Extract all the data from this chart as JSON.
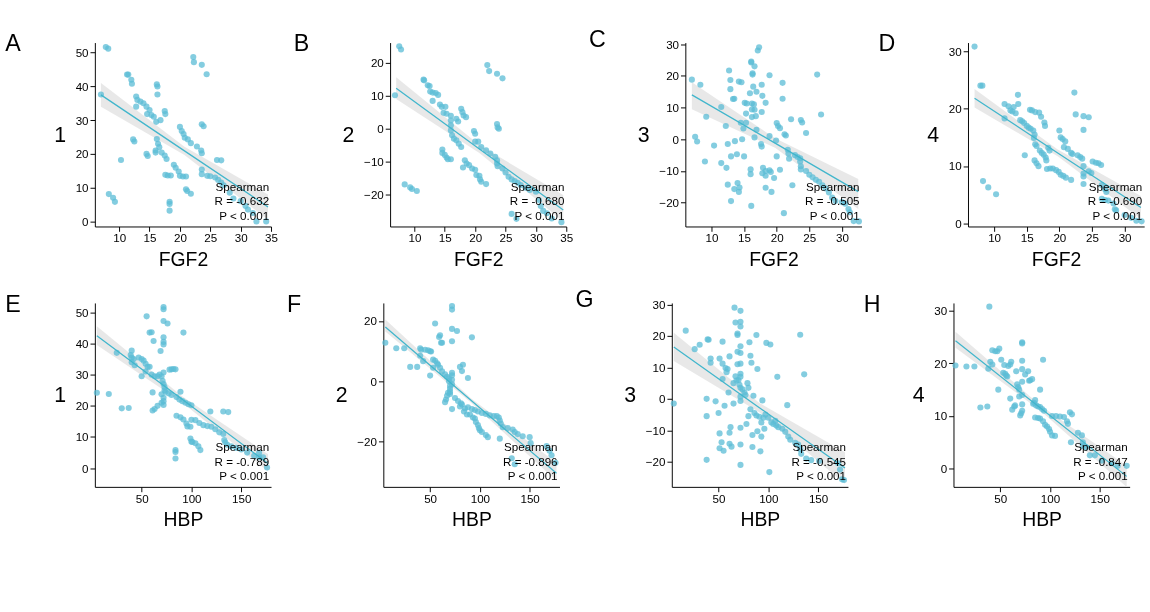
{
  "chart_data": [
    {
      "type": "scatter",
      "title": "A",
      "xlabel": "FGF2",
      "ylabel": "1",
      "marker": "circle",
      "xlim": [
        6,
        35
      ],
      "xticks": [
        10,
        15,
        20,
        25,
        30,
        35
      ],
      "ylim": [
        -1.5,
        53
      ],
      "yticks": [
        0,
        10,
        20,
        30,
        40,
        50
      ],
      "annotations": [
        "Spearman",
        "R = -0.632",
        "P < 0.001"
      ],
      "series": [
        {
          "type": "scatter",
          "color": "#5bbcd6",
          "x": [
            7.8,
            8.2,
            7,
            8.3,
            9,
            9.3,
            10.3,
            11.3,
            11.5,
            12,
            12.1,
            12.3,
            12.5,
            12.8,
            12.8,
            13,
            13.5,
            14,
            14.5,
            15,
            14.6,
            15.3,
            15.7,
            14.5,
            14.7,
            16.2,
            16.3,
            16.3,
            16.1,
            16.8,
            16.2,
            16.4,
            16.6,
            16,
            16,
            17,
            17.5,
            17.8,
            17.5,
            17.6,
            17.6,
            18,
            18.5,
            18.3,
            18.3,
            18.3,
            19,
            19.3,
            19.8,
            20,
            20,
            20.3,
            20.6,
            20.8,
            20.5,
            21,
            21,
            21.2,
            21.8,
            21.3,
            21.8,
            22.2,
            22.3,
            23.6,
            24.4,
            22.8,
            23.5,
            23.6,
            23.6,
            23.9,
            23.6,
            23.6,
            24.5,
            25,
            25.8,
            26.3,
            26.8,
            27.2,
            26.1,
            26.8,
            28.2,
            28.8,
            30,
            30.8,
            31.2,
            32,
            32.6,
            34.2
          ],
          "values": [
            51.7,
            51.2,
            37.6,
            8.1,
            7,
            5.8,
            18.2,
            43.5,
            43.5,
            42,
            40.8,
            24.3,
            23.7,
            37,
            34,
            36,
            35.5,
            35,
            34,
            33,
            31.8,
            31.5,
            31,
            20,
            19.4,
            40.6,
            40,
            37.6,
            29.5,
            30,
            24.4,
            23,
            22,
            21,
            20.4,
            20.4,
            19.5,
            18.5,
            32.7,
            31.8,
            13.8,
            13.6,
            13.6,
            5.8,
            5.2,
            3.2,
            16.8,
            15.9,
            14.8,
            13.5,
            28,
            26.8,
            25.9,
            24.8,
            13.3,
            13.3,
            9.5,
            9,
            8.2,
            24.3,
            23.2,
            48.7,
            47.2,
            46.4,
            43.6,
            22.2,
            21,
            20.2,
            28.8,
            28.2,
            15.4,
            14,
            13.5,
            13.4,
            13,
            12.3,
            11.5,
            10.7,
            18.2,
            18.1,
            8.5,
            6.8,
            6,
            4.6,
            3.5,
            2.5,
            0,
            0
          ]
        },
        {
          "type": "line",
          "marker": "none",
          "color": "#41b6cc",
          "x": [
            7,
            20.75,
            34.5
          ],
          "values": [
            37.5,
            20.9,
            4.3
          ],
          "lower": [
            34,
            19.7,
            0.5
          ],
          "upper": [
            41,
            22.1,
            8
          ]
        }
      ]
    },
    {
      "type": "scatter",
      "title": "B",
      "xlabel": "FGF2",
      "ylabel": "2",
      "marker": "circle",
      "xlim": [
        6,
        35
      ],
      "xticks": [
        10,
        15,
        20,
        25,
        30,
        35
      ],
      "ylim": [
        -29.5,
        26
      ],
      "yticks": [
        -20,
        -10,
        0,
        10,
        20
      ],
      "annotations": [
        "Spearman",
        "R = -0.680",
        "P < 0.001"
      ],
      "series": [
        {
          "type": "scatter",
          "color": "#5bbcd6",
          "x": [
            7.5,
            7.8,
            6.8,
            8.4,
            9.3,
            9.6,
            10.4,
            11.5,
            11.6,
            12.2,
            12.5,
            12.6,
            13,
            13.5,
            13.9,
            13,
            14.2,
            14.5,
            15.1,
            14.8,
            15.3,
            14.6,
            14.6,
            15,
            15.3,
            15.5,
            16,
            16,
            16,
            16,
            16,
            16.2,
            16.5,
            16.9,
            17.3,
            17.7,
            16.9,
            17.2,
            17.7,
            17.9,
            18.1,
            18.5,
            18.3,
            18.6,
            18,
            19,
            19.5,
            20,
            20.2,
            20.7,
            20.8,
            21,
            21.8,
            19.8,
            20,
            20,
            20.5,
            21,
            21.8,
            22.5,
            22,
            22.3,
            23.6,
            24.5,
            23.6,
            23.7,
            23.9,
            23.3,
            23.6,
            23.6,
            23.7,
            24.5,
            25,
            25.5,
            26,
            26.5,
            27,
            27.5,
            28.3,
            29,
            30,
            30.5,
            30.8,
            31.2,
            31.8,
            26,
            26.8,
            32.6,
            34.2
          ],
          "values": [
            24.9,
            23.9,
            10.1,
            -16.8,
            -17.7,
            -18.2,
            -18.8,
            14.8,
            14.6,
            13.1,
            12.9,
            11.2,
            10.9,
            10.8,
            10.2,
            8.4,
            7.3,
            6.6,
            6.6,
            4.8,
            4.5,
            -6.3,
            -7.3,
            -7.9,
            -8.7,
            -9.2,
            -9.2,
            3.9,
            2.5,
            1,
            -0.5,
            -2,
            -3,
            -3.5,
            -4.5,
            -5.5,
            3,
            2.2,
            6,
            5,
            4,
            3.5,
            -9.5,
            -10.5,
            -11.7,
            -11,
            -12,
            -12.4,
            -14,
            -14.2,
            -15.3,
            -16,
            -16.7,
            -0.7,
            -1.5,
            -3.9,
            -3.9,
            -5.5,
            -6.5,
            -7.5,
            19.2,
            17.4,
            16.6,
            15.2,
            1.4,
            0.4,
            0,
            -8.5,
            -9.5,
            -10.5,
            -11.3,
            -12,
            -13.2,
            -14.5,
            -15.3,
            -15.8,
            -16.3,
            -17,
            -17.8,
            -18.5,
            -19,
            -21.5,
            -23.3,
            -24.8,
            -25.5,
            -25.7,
            -27.2,
            -27.1,
            -28.2
          ]
        },
        {
          "type": "line",
          "marker": "none",
          "color": "#41b6cc",
          "x": [
            7,
            20.75,
            34.5
          ],
          "values": [
            12.2,
            -6.2,
            -24.5
          ],
          "lower": [
            9,
            -7.4,
            -28
          ],
          "upper": [
            15.5,
            -5,
            -20
          ]
        }
      ]
    },
    {
      "type": "scatter",
      "title": "C",
      "xlabel": "FGF2",
      "ylabel": "3",
      "marker": "circle",
      "xlim": [
        6,
        33
      ],
      "xticks": [
        10,
        15,
        20,
        25,
        30
      ],
      "ylim": [
        -27.5,
        30.5
      ],
      "yticks": [
        -20,
        -10,
        0,
        10,
        20,
        30
      ],
      "annotations": [
        "Spearman",
        "R = -0.505",
        "P < 0.001"
      ],
      "series": [
        {
          "type": "scatter",
          "color": "#5bbcd6",
          "x": [
            7,
            8.3,
            7.5,
            7.8,
            9.2,
            9,
            10.4,
            11.5,
            11.5,
            12.2,
            12.3,
            12.5,
            12.5,
            12.7,
            12.9,
            12.9,
            13.3,
            13.5,
            13,
            13.6,
            13.9,
            13.5,
            14,
            14.2,
            14.3,
            13,
            14.2,
            14.6,
            14.5,
            15.3,
            14.9,
            14.7,
            15,
            15.1,
            15.4,
            15.3,
            15.9,
            16.1,
            16.1,
            16.3,
            16.3,
            16.4,
            16.6,
            16.2,
            16.5,
            16.2,
            16.6,
            16.2,
            16.8,
            16.9,
            16.9,
            16.6,
            16,
            16,
            16.1,
            17.1,
            17.3,
            17.7,
            17.8,
            17.7,
            18.3,
            17.6,
            17.7,
            17.9,
            17.8,
            18.3,
            18.3,
            18.9,
            19.1,
            18.3,
            19.2,
            19.6,
            18.9,
            18.9,
            19.9,
            20,
            20.2,
            20.5,
            20,
            20.5,
            20.9,
            20.9,
            21.2,
            21.4,
            21.7,
            21.8,
            21.9,
            22.2,
            22.4,
            21.1,
            22.8,
            23.2,
            23.6,
            23.7,
            23.9,
            23.6,
            23.7,
            23.7,
            24.5,
            24.5,
            25,
            25.5,
            26,
            26.5,
            27,
            27.5,
            28,
            28.5,
            29,
            30,
            30.5,
            31,
            31.2,
            31.8,
            32.6,
            26.2,
            26.8
          ],
          "values": [
            18.8,
            17.2,
            0.8,
            -0.7,
            7.1,
            -7,
            -2,
            10.2,
            -7.5,
            4.2,
            -9,
            -1.5,
            -14.3,
            21.7,
            18.7,
            15.8,
            12.7,
            12.8,
            -5.4,
            -0.6,
            -4.7,
            -15.7,
            -13.8,
            -16.6,
            -15.2,
            -19.5,
            18.2,
            18,
            5.2,
            5.2,
            3.4,
            0,
            -5.4,
            11.5,
            11.3,
            8.1,
            14.5,
            24.5,
            24.2,
            20.8,
            20.4,
            16.6,
            23,
            11.3,
            11,
            9.4,
            9.3,
            7,
            7.3,
            15,
            3,
            0.6,
            -9.5,
            -11,
            -21,
            28,
            29,
            17.2,
            13.7,
            8.6,
            11.5,
            -1.5,
            -2.3,
            -9,
            -10.7,
            -10,
            -11.5,
            -9.8,
            -10.3,
            -15.3,
            -16.6,
            -12.2,
            20.2,
            1,
            -0.4,
            5.1,
            4.2,
            3.5,
            -5.4,
            -9.6,
            17.8,
            12.8,
            1.6,
            1.2,
            -3.3,
            -4.5,
            -6.1,
            6.3,
            -14.5,
            -23.3,
            -5,
            -5.6,
            -6,
            6.1,
            5.3,
            -7,
            -8.5,
            -9.5,
            2,
            -10,
            -11.2,
            -12,
            -12.8,
            -13.4,
            -14.5,
            -15.5,
            -16.8,
            -18.4,
            -19.5,
            -19.8,
            -20.3,
            -22,
            -23,
            -25.8,
            -25.9,
            20.4,
            7.8
          ]
        },
        {
          "type": "line",
          "marker": "none",
          "color": "#41b6cc",
          "x": [
            7,
            19.75,
            32.5
          ],
          "values": [
            14,
            -1.2,
            -16.5
          ],
          "lower": [
            9.5,
            -2.7,
            -22
          ],
          "upper": [
            18,
            0.3,
            -12.5
          ]
        }
      ]
    },
    {
      "type": "scatter",
      "title": "D",
      "xlabel": "FGF2",
      "ylabel": "4",
      "marker": "circle",
      "xlim": [
        6,
        33
      ],
      "xticks": [
        10,
        15,
        20,
        25,
        30
      ],
      "ylim": [
        -0.5,
        31.5
      ],
      "yticks": [
        0,
        10,
        20,
        30
      ],
      "annotations": [
        "Spearman",
        "R = -0.690",
        "P < 0.001"
      ],
      "series": [
        {
          "type": "scatter",
          "color": "#5bbcd6",
          "x": [
            7,
            7.9,
            8.2,
            8.3,
            9.1,
            10.3,
            11.6,
            11.6,
            12.2,
            12.5,
            12.8,
            13,
            13.3,
            13.65,
            13.7,
            14,
            14.3,
            14.6,
            15,
            15.3,
            15.6,
            14.7,
            15.5,
            15.8,
            16.3,
            16.9,
            17.2,
            16,
            16.2,
            16.1,
            16.3,
            16.5,
            16.2,
            16.5,
            16.8,
            17,
            17.3,
            17.6,
            17.9,
            17.7,
            17.8,
            18,
            18.1,
            18.6,
            18.3,
            18.5,
            19,
            19.5,
            19.9,
            20.2,
            20.6,
            21,
            21.8,
            20,
            20.2,
            20.5,
            20.9,
            20.7,
            21.3,
            21.8,
            22,
            22.3,
            22.5,
            22.8,
            23.2,
            23.5,
            23.7,
            23.7,
            24.5,
            23.7,
            23.7,
            23.7,
            23.7,
            24.5,
            24.9,
            25.1,
            25.6,
            26,
            26.4,
            26.5,
            27,
            27.2,
            26.5,
            27,
            27.5,
            28.3,
            28.5,
            28.7,
            30,
            31,
            31.8,
            32.6
          ],
          "values": [
            30.8,
            24,
            24,
            7.4,
            6.3,
            5.1,
            20.8,
            18.3,
            20.4,
            19.7,
            19.5,
            20.3,
            19.2,
            22.4,
            20.8,
            18,
            17.8,
            17.5,
            17,
            16.7,
            16.5,
            11.9,
            19.8,
            19.7,
            19.4,
            19.3,
            18.6,
            16.2,
            15.5,
            14.9,
            13.8,
            13.5,
            11,
            10.5,
            10,
            12.7,
            12.3,
            12,
            11.5,
            17.6,
            17,
            11,
            9.5,
            9.6,
            13.2,
            12.7,
            9.6,
            9.3,
            9,
            8.5,
            8.3,
            8,
            7.6,
            16.2,
            15,
            14.7,
            14.3,
            13.3,
            13,
            12.3,
            12.1,
            22.8,
            19,
            11.9,
            11.6,
            11.3,
            18.7,
            16.3,
            18.5,
            10,
            8.7,
            8.2,
            6.9,
            9.1,
            8.8,
            10.8,
            10.6,
            10.5,
            10.2,
            6.7,
            6,
            5.5,
            4.3,
            4.1,
            4,
            3.5,
            2.5,
            2.3,
            1.5,
            1,
            0.5,
            0.4
          ]
        },
        {
          "type": "line",
          "marker": "none",
          "color": "#41b6cc",
          "x": [
            7,
            19.75,
            32.5
          ],
          "values": [
            21.8,
            12.3,
            2.8
          ],
          "lower": [
            20.2,
            11.7,
            0.8
          ],
          "upper": [
            23.4,
            12.9,
            4.8
          ]
        }
      ]
    },
    {
      "type": "scatter",
      "title": "E",
      "xlabel": "HBP",
      "ylabel": "1",
      "marker": "circle",
      "xlim": [
        3,
        180
      ],
      "xticks": [
        50,
        100,
        150
      ],
      "ylim": [
        -6,
        53
      ],
      "yticks": [
        0,
        10,
        20,
        30,
        40,
        50
      ],
      "annotations": [
        "Spearman",
        "R = -0.789",
        "P < 0.001"
      ],
      "series": [
        {
          "type": "scatter",
          "color": "#5bbcd6",
          "x": [
            5,
            17,
            30,
            37,
            25,
            39,
            40,
            40,
            42,
            40,
            43,
            47,
            50,
            52,
            54,
            56,
            58,
            54,
            50,
            60,
            63,
            66,
            68,
            70,
            72,
            71,
            72,
            73,
            73,
            74,
            77,
            80,
            70,
            72,
            72,
            72,
            70,
            66,
            63,
            61,
            61,
            55,
            58,
            60,
            62,
            69,
            72,
            72,
            72,
            76,
            72,
            72,
            72,
            92,
            78,
            80,
            82,
            84,
            89,
            85,
            88,
            91,
            94,
            97,
            100,
            85,
            89,
            92,
            95,
            96,
            99,
            100,
            104,
            108,
            112,
            116,
            120,
            124,
            128,
            132,
            133,
            134,
            136,
            140,
            145,
            150,
            156,
            163,
            168,
            172,
            176,
            168,
            119,
            132,
            137,
            99,
            100,
            101,
            104,
            107,
            109,
            84,
            84,
            84
          ],
          "values": [
            24.2,
            23.8,
            19.2,
            19.3,
            37,
            36.3,
            37.7,
            35.5,
            35,
            34,
            33,
            35.5,
            35,
            34.5,
            33.5,
            32.5,
            32.5,
            31,
            29.5,
            30,
            29.5,
            29.5,
            30,
            29.5,
            30.7,
            28,
            27,
            26,
            25,
            24.5,
            24,
            23.5,
            23.7,
            22.6,
            21.5,
            20.3,
            21,
            20,
            19,
            18.5,
            24.3,
            48.7,
            43.5,
            43.6,
            40.8,
            37.6,
            51.7,
            51,
            47.2,
            46.4,
            42,
            40.5,
            39.7,
            43.5,
            31.6,
            31.7,
            31.8,
            31.7,
            24.5,
            22.8,
            22,
            21.5,
            21,
            20.5,
            20.2,
            16.8,
            16.3,
            15.6,
            14.3,
            13.4,
            13.3,
            15.5,
            15.4,
            14.5,
            13.8,
            13.5,
            13.3,
            12.5,
            11.5,
            11,
            9,
            8.3,
            7.5,
            7,
            6.5,
            6,
            5,
            4,
            3.5,
            3.5,
            0.2,
            4.9,
            18.2,
            18.2,
            18,
            9.5,
            8.5,
            8.4,
            8,
            7,
            5.8,
            5.8,
            5.2,
            3.1
          ]
        },
        {
          "type": "line",
          "marker": "none",
          "color": "#41b6cc",
          "x": [
            5,
            91,
            177
          ],
          "values": [
            42.5,
            22,
            1.5
          ],
          "lower": [
            39.5,
            21,
            -1
          ],
          "upper": [
            45.5,
            23,
            4.5
          ]
        }
      ]
    },
    {
      "type": "scatter",
      "title": "F",
      "xlabel": "HBP",
      "ylabel": "2",
      "marker": "circle",
      "xlim": [
        3,
        180
      ],
      "xticks": [
        50,
        100,
        150
      ],
      "ylim": [
        -35,
        26
      ],
      "yticks": [
        -20,
        0,
        20
      ],
      "annotations": [
        "Spearman",
        "R = -0.896",
        "P < 0.001"
      ],
      "series": [
        {
          "type": "scatter",
          "color": "#5bbcd6",
          "x": [
            5,
            16,
            24,
            30,
            37,
            40,
            41,
            45,
            48,
            50,
            51,
            40,
            43,
            50,
            53,
            55,
            57,
            58,
            60,
            53,
            55,
            59,
            60,
            61,
            62,
            62,
            65,
            67,
            69,
            69,
            70,
            70,
            70,
            70,
            72,
            72,
            72,
            72,
            68,
            67,
            66,
            65,
            72,
            72,
            72,
            77,
            72,
            92,
            83,
            80,
            82,
            88,
            75,
            78,
            80,
            81,
            82,
            72,
            85,
            88,
            92,
            95,
            98,
            102,
            106,
            110,
            114,
            117,
            119,
            120,
            121,
            123,
            128,
            133,
            135,
            138,
            143,
            150,
            151,
            84,
            87,
            90,
            93,
            95,
            96,
            98,
            99,
            100,
            102,
            106,
            108,
            120,
            132,
            135,
            167,
            170,
            172,
            176
          ],
          "values": [
            12.8,
            11,
            11,
            4.8,
            4.8,
            11,
            10.5,
            10.5,
            10.3,
            10,
            9.9,
            8.5,
            6.7,
            1.9,
            7.2,
            6.8,
            6,
            5.5,
            4.5,
            4.5,
            19.2,
            14.7,
            15.3,
            12.8,
            12.8,
            3.3,
            2.3,
            1.5,
            1,
            0,
            -1.5,
            -2.5,
            -3.5,
            -4.2,
            -1,
            0.5,
            2,
            2.8,
            -3.8,
            -4.8,
            -6,
            -6.9,
            25,
            23.8,
            17.4,
            16.7,
            13.3,
            14.6,
            5.5,
            4.8,
            3.4,
            1.1,
            -5.5,
            -6.5,
            -8.3,
            -7.3,
            -7.7,
            -9.2,
            -9,
            -8.6,
            -9.2,
            -9.5,
            -10,
            -10.5,
            -10.8,
            -11.3,
            -11.5,
            -11.5,
            -12,
            -13,
            -14,
            -15.2,
            -15.5,
            -16,
            -16.8,
            -17.5,
            -18.2,
            -18.5,
            -20.5,
            -10,
            -11,
            -11,
            -12,
            -12.3,
            -13.5,
            -14.5,
            -15.5,
            -16.2,
            -16.8,
            -17.8,
            -18.5,
            -19,
            -25.5,
            -27.5,
            -21.5,
            -23,
            -24.5,
            -27
          ]
        },
        {
          "type": "line",
          "marker": "none",
          "color": "#41b6cc",
          "x": [
            5,
            91,
            177
          ],
          "values": [
            18,
            -6.3,
            -30.5
          ],
          "lower": [
            16.5,
            -7,
            -33
          ],
          "upper": [
            20.5,
            -5.6,
            -27
          ]
        }
      ]
    },
    {
      "type": "scatter",
      "title": "G",
      "xlabel": "HBP",
      "ylabel": "3",
      "marker": "circle",
      "xlim": [
        3,
        180
      ],
      "xticks": [
        50,
        100,
        150
      ],
      "ylim": [
        -28,
        30.5
      ],
      "yticks": [
        -20,
        -10,
        0,
        10,
        20,
        30
      ],
      "annotations": [
        "Spearman",
        "R = -0.545",
        "P < 0.001"
      ],
      "series": [
        {
          "type": "scatter",
          "color": "#5bbcd6",
          "x": [
            5,
            17,
            26,
            31,
            39,
            40,
            42,
            42,
            38,
            38,
            38,
            47,
            50,
            51,
            51,
            51,
            53,
            54,
            54,
            54,
            55,
            56,
            57,
            58,
            59,
            60,
            61,
            61,
            62,
            61,
            63,
            65,
            65,
            66,
            67,
            67,
            68,
            69,
            69,
            69,
            69,
            70,
            71,
            72,
            72,
            72,
            72,
            72,
            72,
            72,
            72,
            72,
            72,
            72,
            72,
            72,
            72,
            74,
            76,
            77,
            78,
            79,
            80,
            80,
            81,
            82,
            82,
            83,
            84,
            84,
            85,
            86,
            88,
            88,
            89,
            89,
            91,
            92,
            93,
            93,
            94,
            95,
            96,
            97,
            98,
            100,
            101,
            102,
            103,
            105,
            107,
            108,
            109,
            110,
            114,
            117,
            119,
            120,
            122,
            127,
            130,
            132,
            133,
            132,
            136,
            138,
            143,
            151,
            170,
            172,
            176,
            174
          ],
          "values": [
            -1.5,
            21.7,
            15.8,
            17.2,
            18.9,
            18.8,
            12.8,
            11.5,
            0,
            -5.5,
            -19.4,
            -0.8,
            -4.5,
            -11,
            -15.7,
            12.8,
            -13.8,
            18.2,
            11.2,
            6.3,
            -16.5,
            -2.2,
            9.8,
            8.5,
            9.5,
            2,
            13.5,
            -10.8,
            -9,
            -14.3,
            -15.2,
            -1.5,
            5,
            29,
            24.3,
            7.2,
            5.8,
            15,
            20.8,
            20.3,
            11,
            6,
            4.5,
            28,
            24.5,
            23,
            16.7,
            14.6,
            11.2,
            8,
            7,
            3.5,
            0.7,
            -0.7,
            -9.2,
            -14.5,
            -21,
            3,
            2,
            1.2,
            -8,
            5,
            3.5,
            -5.5,
            18,
            13.7,
            -3.3,
            11.5,
            -11.5,
            -15.3,
            1,
            -4.5,
            -5.3,
            20.3,
            9.5,
            -10.3,
            -5.7,
            -16.7,
            -7.5,
            -12,
            -0.5,
            -6,
            -9.5,
            -5,
            17.8,
            -6,
            -23.3,
            17.3,
            -7.5,
            -8,
            -7,
            -8.5,
            7,
            -9,
            -9.5,
            -10.5,
            -2,
            -12,
            -13,
            -14,
            -14.5,
            -16,
            -17.5,
            20.4,
            7.8,
            -19,
            -19.5,
            -19.8,
            -20.5,
            -22.5,
            -25.8,
            -25.6
          ]
        },
        {
          "type": "line",
          "marker": "none",
          "color": "#41b6cc",
          "x": [
            5,
            91,
            177
          ],
          "values": [
            16.5,
            -2.8,
            -22
          ],
          "lower": [
            12,
            -4.3,
            -27
          ],
          "upper": [
            21,
            -1.3,
            -17
          ]
        }
      ]
    },
    {
      "type": "scatter",
      "title": "H",
      "xlabel": "HBP",
      "ylabel": "4",
      "marker": "circle",
      "xlim": [
        3,
        180
      ],
      "xticks": [
        50,
        100,
        150
      ],
      "ylim": [
        -3.5,
        31.5
      ],
      "yticks": [
        0,
        10,
        20,
        30
      ],
      "annotations": [
        "Spearman",
        "R = -0.847",
        "P < 0.001"
      ],
      "series": [
        {
          "type": "scatter",
          "color": "#5bbcd6",
          "x": [
            5,
            16,
            24,
            30,
            37,
            38,
            39,
            40,
            42,
            45,
            47,
            49,
            42,
            48,
            51,
            53,
            55,
            56,
            57,
            54,
            58,
            60,
            61,
            60,
            62,
            64,
            65,
            66,
            67,
            68,
            69,
            69,
            70,
            71,
            72,
            72,
            72,
            72,
            72,
            72,
            72,
            72,
            75,
            78,
            79,
            80,
            82,
            83,
            84,
            85,
            86,
            88,
            90,
            92,
            94,
            93,
            90,
            85,
            88,
            90,
            93,
            95,
            97,
            99,
            100,
            102,
            105,
            102,
            106,
            110,
            114,
            117,
            118,
            120,
            122,
            121,
            128,
            132,
            133,
            133,
            136,
            140,
            145,
            152,
            162,
            168,
            177
          ],
          "values": [
            19.6,
            19.4,
            19.4,
            11.6,
            11.8,
            19,
            30.8,
            20.3,
            22.5,
            22.3,
            22.3,
            22.8,
            19.8,
            15,
            20.7,
            18.2,
            18,
            17.7,
            17.5,
            19.7,
            19.5,
            19.8,
            20.3,
            13.3,
            11.2,
            11.8,
            12,
            18.5,
            16,
            15.5,
            15,
            13.7,
            10.1,
            10.5,
            11,
            12.2,
            14,
            16.5,
            23.8,
            24,
            20.5,
            18.9,
            17.9,
            18.5,
            16.7,
            16.8,
            17,
            12.3,
            12.5,
            13,
            12,
            11.8,
            11.7,
            11.3,
            11,
            20.7,
            15,
            9.7,
            9.6,
            9.5,
            9,
            8.3,
            8,
            7.5,
            7,
            6.3,
            6.2,
            10,
            10,
            9.9,
            9.8,
            9,
            8.5,
            10.7,
            10.3,
            5,
            6.8,
            6.3,
            5,
            4.3,
            4,
            2.5,
            2.5,
            1.5,
            1,
            0.5,
            0.5
          ]
        },
        {
          "type": "line",
          "marker": "none",
          "color": "#41b6cc",
          "x": [
            5,
            91,
            177
          ],
          "values": [
            24.3,
            11.4,
            -1.5
          ],
          "lower": [
            23,
            10.9,
            -3.5
          ],
          "upper": [
            26,
            11.9,
            0.5
          ]
        }
      ]
    }
  ]
}
